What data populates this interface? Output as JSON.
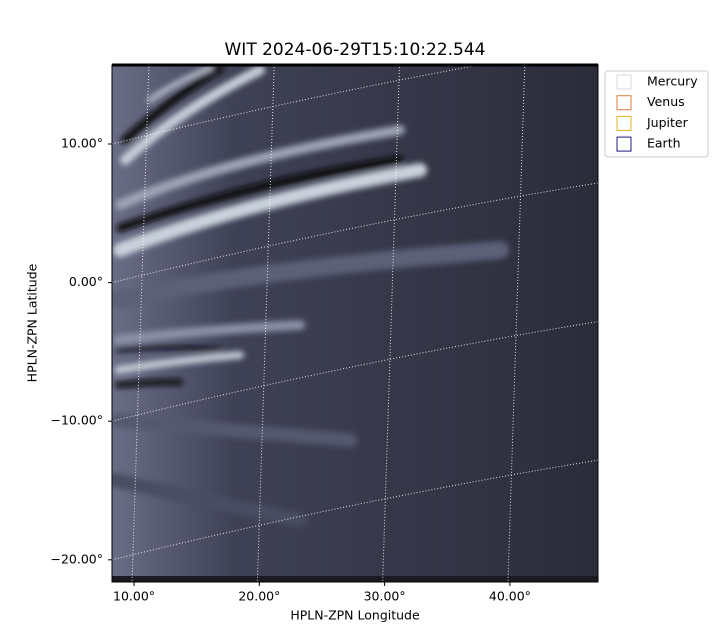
{
  "chart_data": {
    "type": "image",
    "title": "WIT 2024-06-29T15:10:22.544",
    "x_label": "HPLN-ZPN Longitude",
    "y_label": "HPLN-ZPN Latitude",
    "xlim": [
      8.24,
      47.03
    ],
    "ylim": [
      -21.6,
      15.7
    ],
    "xticks": [
      {
        "value": 10,
        "label": "10.00°"
      },
      {
        "value": 20,
        "label": "20.00°"
      },
      {
        "value": 30,
        "label": "30.00°"
      },
      {
        "value": 40,
        "label": "40.00°"
      }
    ],
    "yticks": [
      {
        "value": 10,
        "label": "10.00°"
      },
      {
        "value": 0,
        "label": "0.00°"
      },
      {
        "value": -10,
        "label": "−10.00°"
      },
      {
        "value": -20,
        "label": "−20.00°"
      }
    ],
    "grid": true,
    "series": [
      {
        "name": "Mercury",
        "color": "#d9d9d9"
      },
      {
        "name": "Venus",
        "color": "#e07b39"
      },
      {
        "name": "Jupiter",
        "color": "#e3b020"
      },
      {
        "name": "Earth",
        "color": "#1c1c7a"
      }
    ]
  }
}
